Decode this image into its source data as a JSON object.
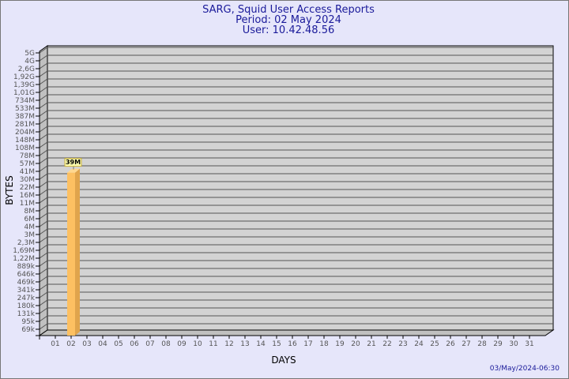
{
  "chart_data": {
    "type": "bar",
    "title": [
      "SARG, Squid User Access Reports",
      "Period: 02 May 2024",
      "User: 10.42.48.56"
    ],
    "xlabel": "DAYS",
    "ylabel": "BYTES",
    "y_ticks": [
      "5G",
      "4G",
      "2,6G",
      "1,92G",
      "1,39G",
      "1,01G",
      "734M",
      "533M",
      "387M",
      "281M",
      "204M",
      "148M",
      "108M",
      "78M",
      "57M",
      "41M",
      "30M",
      "22M",
      "16M",
      "11M",
      "8M",
      "6M",
      "4M",
      "3M",
      "2,3M",
      "1,69M",
      "1,22M",
      "889k",
      "646k",
      "469k",
      "341k",
      "247k",
      "180k",
      "131k",
      "95k",
      "69k"
    ],
    "categories": [
      "01",
      "02",
      "03",
      "04",
      "05",
      "06",
      "07",
      "08",
      "09",
      "10",
      "11",
      "12",
      "13",
      "14",
      "15",
      "16",
      "17",
      "18",
      "19",
      "20",
      "21",
      "22",
      "23",
      "24",
      "25",
      "26",
      "27",
      "28",
      "29",
      "30",
      "31"
    ],
    "values": [
      null,
      39000000,
      null,
      null,
      null,
      null,
      null,
      null,
      null,
      null,
      null,
      null,
      null,
      null,
      null,
      null,
      null,
      null,
      null,
      null,
      null,
      null,
      null,
      null,
      null,
      null,
      null,
      null,
      null,
      null,
      null
    ],
    "data_labels": {
      "02": "39M"
    },
    "scale": "log",
    "grid": true,
    "colors": {
      "bar": "#fdc062",
      "bar_side": "#e0a44c",
      "plot": "#d3d3d3",
      "wall": "#c0c0c0",
      "background": "#e6e6fa",
      "title": "#1a1a9a"
    }
  },
  "footer": {
    "timestamp": "03/May/2024-06:30"
  }
}
